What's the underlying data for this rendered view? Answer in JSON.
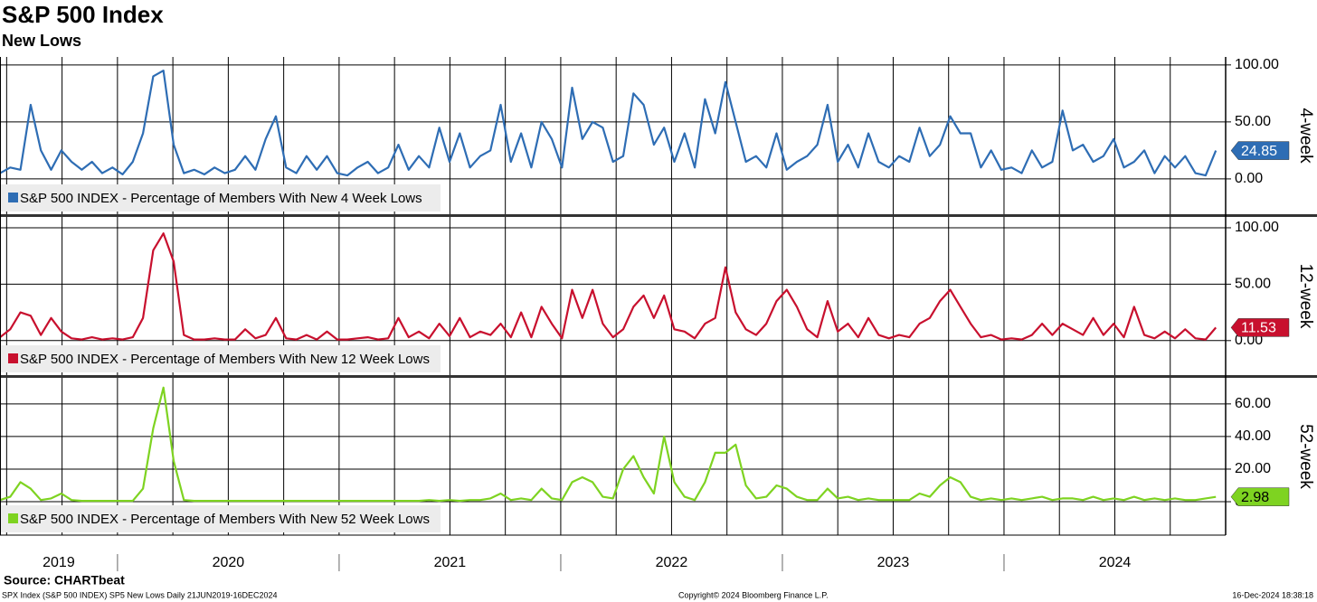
{
  "title": "S&P 500 Index",
  "subtitle": "New Lows",
  "source": "Source: CHARTbeat",
  "footer_left": "SPX Index (S&P 500 INDEX) SP5 New Lows  Daily 21JUN2019-16DEC2024",
  "footer_center": "Copyright© 2024 Bloomberg Finance L.P.",
  "footer_right": "16-Dec-2024 18:38:18",
  "x_axis": {
    "xlim": [
      2019.47,
      2025.0
    ],
    "xticks": [
      2019.5,
      2019.75,
      2020,
      2020.25,
      2020.5,
      2020.75,
      2021,
      2021.25,
      2021.5,
      2021.75,
      2022,
      2022.25,
      2022.5,
      2022.75,
      2023,
      2023.25,
      2023.5,
      2023.75,
      2024,
      2024.25,
      2024.5,
      2024.75
    ],
    "categories": [
      "2019",
      "2020",
      "2021",
      "2022",
      "2023",
      "2024"
    ]
  },
  "chart_data": [
    {
      "type": "line",
      "axis_title": "4-week",
      "ylim": [
        -31,
        107
      ],
      "yticks": [
        {
          "value": 0,
          "label": "0.00"
        },
        {
          "value": 50,
          "label": "50.00"
        },
        {
          "value": 100,
          "label": "100.00"
        }
      ],
      "series": [
        {
          "name": "S&P 500 INDEX - Percentage of Members With New 4 Week Lows",
          "color": "#2e6db4",
          "values": [
            5,
            10,
            8,
            65,
            25,
            8,
            25,
            15,
            8,
            15,
            5,
            10,
            4,
            15,
            40,
            90,
            95,
            30,
            5,
            8,
            4,
            10,
            5,
            8,
            20,
            8,
            35,
            55,
            10,
            5,
            20,
            8,
            20,
            5,
            3,
            10,
            15,
            5,
            10,
            30,
            8,
            20,
            10,
            45,
            15,
            40,
            10,
            20,
            25,
            65,
            15,
            40,
            10,
            50,
            35,
            10,
            80,
            35,
            50,
            45,
            15,
            20,
            75,
            65,
            30,
            45,
            15,
            40,
            10,
            70,
            40,
            85,
            50,
            15,
            20,
            10,
            40,
            8,
            15,
            20,
            30,
            65,
            15,
            30,
            10,
            40,
            15,
            10,
            20,
            15,
            45,
            20,
            30,
            55,
            40,
            40,
            10,
            25,
            8,
            10,
            5,
            25,
            10,
            15,
            60,
            25,
            30,
            15,
            20,
            35,
            10,
            15,
            25,
            5,
            20,
            10,
            20,
            5,
            3,
            24.85
          ]
        }
      ]
    },
    {
      "type": "line",
      "axis_title": "12-week",
      "ylim": [
        -30.6,
        109.6
      ],
      "yticks": [
        {
          "value": 0,
          "label": "0.00"
        },
        {
          "value": 50,
          "label": "50.00"
        },
        {
          "value": 100,
          "label": "100.00"
        }
      ],
      "series": [
        {
          "name": "S&P 500 INDEX - Percentage of Members With New 12 Week Lows",
          "color": "#c8102e",
          "values": [
            3,
            10,
            25,
            22,
            5,
            20,
            8,
            2,
            1,
            3,
            1,
            2,
            1,
            3,
            20,
            80,
            95,
            70,
            5,
            1,
            1,
            2,
            1,
            1,
            10,
            2,
            5,
            20,
            2,
            1,
            5,
            1,
            8,
            1,
            1,
            2,
            3,
            1,
            2,
            20,
            3,
            8,
            2,
            15,
            4,
            20,
            3,
            8,
            5,
            15,
            3,
            25,
            3,
            30,
            15,
            2,
            45,
            20,
            45,
            15,
            3,
            10,
            30,
            40,
            20,
            40,
            10,
            8,
            2,
            15,
            20,
            65,
            25,
            10,
            5,
            15,
            35,
            45,
            30,
            10,
            3,
            35,
            8,
            15,
            3,
            20,
            5,
            2,
            5,
            3,
            15,
            20,
            35,
            45,
            30,
            15,
            3,
            5,
            1,
            2,
            1,
            5,
            15,
            5,
            15,
            10,
            5,
            20,
            5,
            15,
            3,
            30,
            5,
            2,
            8,
            2,
            10,
            2,
            1,
            11.53
          ]
        }
      ]
    },
    {
      "type": "line",
      "axis_title": "52-week",
      "ylim": [
        -20.5,
        76
      ],
      "yticks": [
        {
          "value": 0,
          "label": "0.00"
        },
        {
          "value": 20,
          "label": "20.00"
        },
        {
          "value": 40,
          "label": "40.00"
        },
        {
          "value": 60,
          "label": "60.00"
        }
      ],
      "series": [
        {
          "name": "S&P 500 INDEX - Percentage of Members With New 52 Week Lows",
          "color": "#7ed321",
          "values": [
            1,
            3,
            12,
            8,
            1,
            2,
            5,
            1,
            0.5,
            0.5,
            0.5,
            0.5,
            0.5,
            0.5,
            8,
            45,
            70,
            25,
            1,
            0.5,
            0.5,
            0.5,
            0.5,
            0.5,
            0.5,
            0.5,
            0.5,
            0.5,
            0.5,
            0.5,
            0.5,
            0.5,
            0.5,
            0.5,
            0.5,
            0.5,
            0.5,
            0.5,
            0.5,
            0.5,
            0.5,
            0.5,
            1,
            0.5,
            1,
            0.5,
            1,
            1,
            2,
            5,
            1,
            2,
            1,
            8,
            2,
            1,
            12,
            15,
            12,
            3,
            2,
            20,
            28,
            15,
            5,
            40,
            12,
            3,
            1,
            12,
            30,
            30,
            35,
            10,
            2,
            3,
            10,
            8,
            3,
            1,
            1,
            8,
            2,
            3,
            1,
            2,
            1,
            1,
            1,
            1,
            5,
            3,
            10,
            15,
            12,
            3,
            1,
            2,
            1,
            2,
            1,
            2,
            3,
            1,
            2,
            2,
            1,
            3,
            1,
            2,
            1,
            3,
            1,
            2,
            1,
            2,
            1,
            1,
            2,
            2.98
          ]
        }
      ]
    }
  ]
}
